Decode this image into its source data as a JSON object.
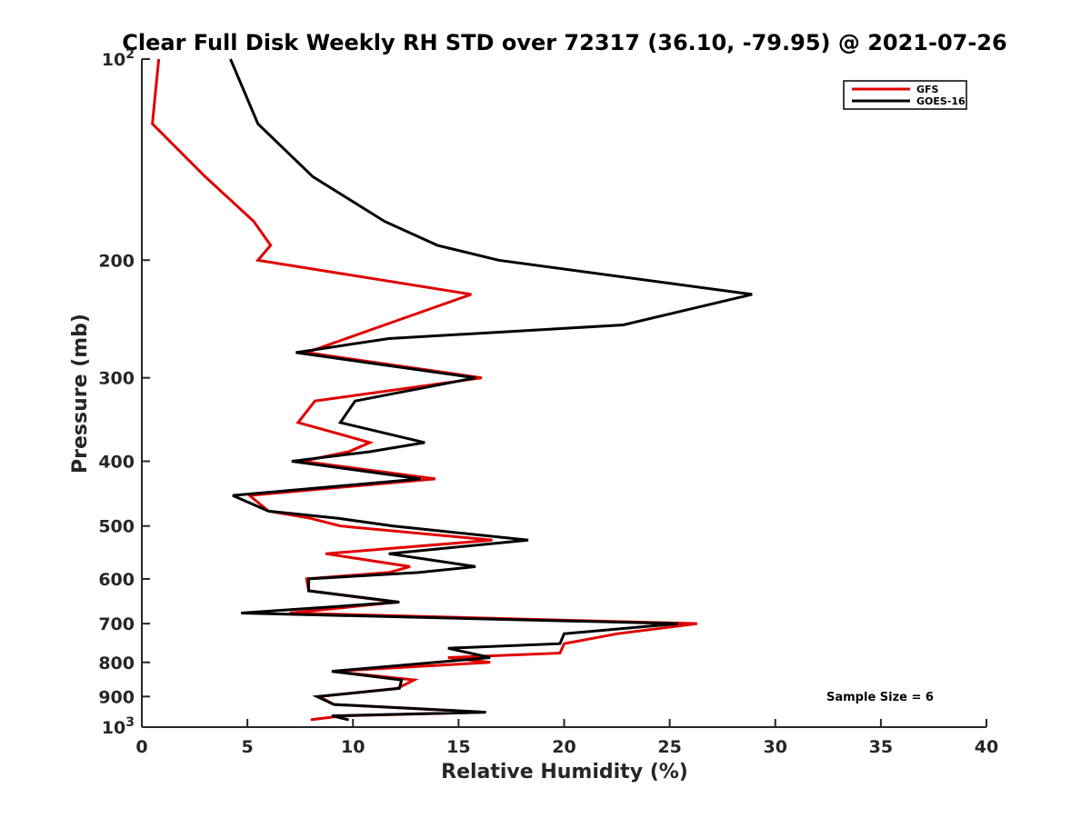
{
  "chart_data": {
    "type": "line",
    "title": "Clear Full Disk Weekly RH STD over 72317 (36.10, -79.95) @ 2021-07-26",
    "xlabel": "Relative Humidity (%)",
    "ylabel": "Pressure (mb)",
    "xlim": [
      0,
      40
    ],
    "ylim": [
      100,
      1000
    ],
    "y_scale": "log",
    "y_reversed": true,
    "x_ticks": [
      0,
      5,
      10,
      15,
      20,
      25,
      30,
      35,
      40
    ],
    "x_tick_labels": [
      "0",
      "5",
      "10",
      "15",
      "20",
      "25",
      "30",
      "35",
      "40"
    ],
    "y_ticks": [
      {
        "value": 100,
        "label": "10",
        "sup": "2"
      },
      {
        "value": 200,
        "label": "200",
        "sup": ""
      },
      {
        "value": 300,
        "label": "300",
        "sup": ""
      },
      {
        "value": 400,
        "label": "400",
        "sup": ""
      },
      {
        "value": 500,
        "label": "500",
        "sup": ""
      },
      {
        "value": 600,
        "label": "600",
        "sup": ""
      },
      {
        "value": 700,
        "label": "700",
        "sup": ""
      },
      {
        "value": 800,
        "label": "800",
        "sup": ""
      },
      {
        "value": 900,
        "label": "900",
        "sup": ""
      },
      {
        "value": 1000,
        "label": "10",
        "sup": "3"
      }
    ],
    "grid": false,
    "legend_position": "top-right",
    "annotation": "Sample Size = 6",
    "series": [
      {
        "name": "GFS",
        "color": "#e00000",
        "points": [
          [
            0.8,
            100
          ],
          [
            0.5,
            125
          ],
          [
            3.0,
            150
          ],
          [
            5.3,
            175
          ],
          [
            6.1,
            190
          ],
          [
            5.5,
            200
          ],
          [
            15.6,
            225
          ],
          [
            11.5,
            250
          ],
          [
            7.8,
            275
          ],
          [
            16.1,
            300
          ],
          [
            8.2,
            325
          ],
          [
            7.4,
            350
          ],
          [
            10.8,
            375
          ],
          [
            9.8,
            387
          ],
          [
            7.6,
            400
          ],
          [
            13.9,
            425
          ],
          [
            5.1,
            450
          ],
          [
            6.0,
            475
          ],
          [
            8.0,
            487
          ],
          [
            9.4,
            500
          ],
          [
            16.6,
            525
          ],
          [
            8.7,
            550
          ],
          [
            12.7,
            575
          ],
          [
            11.7,
            587
          ],
          [
            7.8,
            600
          ],
          [
            7.9,
            625
          ],
          [
            12.1,
            650
          ],
          [
            7.0,
            675
          ],
          [
            26.3,
            700
          ],
          [
            22.5,
            725
          ],
          [
            20.0,
            750
          ],
          [
            19.8,
            775
          ],
          [
            14.5,
            787
          ],
          [
            16.5,
            800
          ],
          [
            9.0,
            825
          ],
          [
            12.9,
            850
          ],
          [
            12.1,
            875
          ],
          [
            8.4,
            900
          ],
          [
            9.1,
            925
          ],
          [
            16.2,
            950
          ],
          [
            9.5,
            962
          ],
          [
            8.0,
            975
          ]
        ]
      },
      {
        "name": "GOES-16",
        "color": "#000000",
        "points": [
          [
            4.2,
            100
          ],
          [
            5.5,
            125
          ],
          [
            8.1,
            150
          ],
          [
            11.5,
            175
          ],
          [
            14.0,
            190
          ],
          [
            16.9,
            200
          ],
          [
            28.9,
            225
          ],
          [
            22.8,
            250
          ],
          [
            11.7,
            262
          ],
          [
            7.3,
            275
          ],
          [
            15.8,
            300
          ],
          [
            10.1,
            325
          ],
          [
            9.4,
            350
          ],
          [
            13.4,
            375
          ],
          [
            10.8,
            387
          ],
          [
            7.1,
            400
          ],
          [
            13.2,
            425
          ],
          [
            4.3,
            450
          ],
          [
            6.0,
            475
          ],
          [
            9.3,
            487
          ],
          [
            11.9,
            500
          ],
          [
            18.3,
            525
          ],
          [
            11.7,
            550
          ],
          [
            15.8,
            575
          ],
          [
            13.1,
            587
          ],
          [
            7.9,
            600
          ],
          [
            7.9,
            625
          ],
          [
            12.2,
            650
          ],
          [
            4.7,
            675
          ],
          [
            25.4,
            700
          ],
          [
            20.0,
            725
          ],
          [
            19.8,
            750
          ],
          [
            14.5,
            762
          ],
          [
            16.5,
            787
          ],
          [
            9.0,
            825
          ],
          [
            12.3,
            850
          ],
          [
            12.2,
            875
          ],
          [
            8.3,
            900
          ],
          [
            9.1,
            925
          ],
          [
            16.3,
            950
          ],
          [
            9.0,
            962
          ],
          [
            9.8,
            975
          ]
        ]
      }
    ]
  }
}
